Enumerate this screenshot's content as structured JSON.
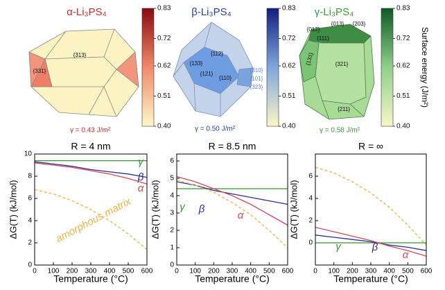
{
  "crystals": [
    {
      "title": "α-Li₃PS₄",
      "color": "#cc2a2a",
      "facets": [
        "{313}",
        "{331}"
      ],
      "energy": "γ = 0.43 J/m²"
    },
    {
      "title": "β-Li₃PS₄",
      "color": "#2a3fa0",
      "facets": [
        "{112}",
        "{133}",
        "{121}",
        "{110}",
        "{310}",
        "{101}",
        "{323}"
      ],
      "energy": "γ = 0.50 J/m²"
    },
    {
      "title": "γ-Li₃PS₄",
      "color": "#3a9a3a",
      "facets": [
        "{012}",
        "{013}",
        "{203}",
        "{111}",
        "{131}",
        "{321}",
        "{211}"
      ],
      "energy": "γ = 0.58 J/m²"
    }
  ],
  "colorbar": {
    "label": "Surface energy (J/m²)",
    "lim": [
      0.4,
      0.83
    ],
    "ticks": [
      {
        "value": 0.4,
        "label": "0.40"
      },
      0.51,
      0.62,
      0.72,
      0.83
    ]
  },
  "chart_data": [
    {
      "type": "line",
      "title": "R = 4 nm",
      "x_label": "Temperature (°C)",
      "y_label": "ΔG(T) (kJ/mol)",
      "x": [
        0,
        100,
        200,
        300,
        400,
        500,
        600
      ],
      "xlim": [
        0,
        600
      ],
      "xticks": [
        0,
        100,
        200,
        300,
        400,
        500,
        600
      ],
      "ylim": [
        0,
        10
      ],
      "yticks": [
        0,
        2,
        4,
        6,
        8,
        10
      ],
      "series": [
        {
          "name": "γ",
          "color": "#2e9a2e",
          "values": [
            9.4,
            9.4,
            9.4,
            9.4,
            9.4,
            9.4,
            9.4
          ]
        },
        {
          "name": "β",
          "color": "#2d2d9e",
          "values": [
            9.3,
            9.1,
            8.9,
            8.6,
            8.4,
            8.2,
            7.9
          ]
        },
        {
          "name": "α",
          "color": "#d04a5a",
          "values": [
            9.2,
            9.0,
            8.8,
            8.5,
            8.2,
            7.8,
            7.3
          ]
        },
        {
          "name": "amorphous matrix",
          "color": "#e8b443",
          "dashed": true,
          "values": [
            6.8,
            6.4,
            5.8,
            5.0,
            4.0,
            2.8,
            1.4
          ]
        }
      ]
    },
    {
      "type": "line",
      "title": "R = 8.5 nm",
      "x_label": "Temperature (°C)",
      "y_label": "ΔG(T) (kJ/mol)",
      "x": [
        0,
        100,
        200,
        300,
        400,
        500,
        600
      ],
      "xlim": [
        0,
        600
      ],
      "xticks": [
        0,
        100,
        200,
        300,
        400,
        500,
        600
      ],
      "ylim": [
        0,
        6.4
      ],
      "yticks": [
        0,
        1,
        2,
        3,
        4,
        5,
        6
      ],
      "series": [
        {
          "name": "γ",
          "color": "#2e9a2e",
          "values": [
            4.4,
            4.4,
            4.4,
            4.4,
            4.4,
            4.4,
            4.4
          ]
        },
        {
          "name": "β",
          "color": "#2d2d9e",
          "values": [
            4.8,
            4.6,
            4.3,
            4.1,
            3.9,
            3.7,
            3.5
          ]
        },
        {
          "name": "α",
          "color": "#d04a5a",
          "values": [
            5.1,
            4.8,
            4.4,
            4.0,
            3.5,
            2.9,
            2.3
          ]
        },
        {
          "color": "#e8b443",
          "dashed": true,
          "values": [
            4.9,
            4.6,
            4.2,
            3.6,
            2.9,
            2.0,
            1.0
          ]
        }
      ]
    },
    {
      "type": "line",
      "title": "R = ∞",
      "x_label": "Temperature (°C)",
      "y_label": "ΔG(T) (kJ/mol)",
      "x": [
        0,
        100,
        200,
        300,
        400,
        500,
        600
      ],
      "xlim": [
        0,
        600
      ],
      "xticks": [
        0,
        100,
        200,
        300,
        400,
        500,
        600
      ],
      "ylim": [
        -2,
        8
      ],
      "yticks": [
        0,
        2,
        4,
        6
      ],
      "series": [
        {
          "name": "γ",
          "color": "#2e9a2e",
          "values": [
            0,
            0,
            0,
            0,
            0,
            0,
            0
          ]
        },
        {
          "name": "β",
          "color": "#2d2d9e",
          "values": [
            0.7,
            0.5,
            0.3,
            0.1,
            -0.2,
            -0.4,
            -0.7
          ]
        },
        {
          "name": "α",
          "color": "#d04a5a",
          "values": [
            1.4,
            1.0,
            0.6,
            0.2,
            -0.3,
            -0.7,
            -1.2
          ]
        },
        {
          "color": "#e8b443",
          "dashed": true,
          "values": [
            6.8,
            6.3,
            5.5,
            4.5,
            3.2,
            1.6,
            -0.2
          ]
        }
      ]
    }
  ]
}
